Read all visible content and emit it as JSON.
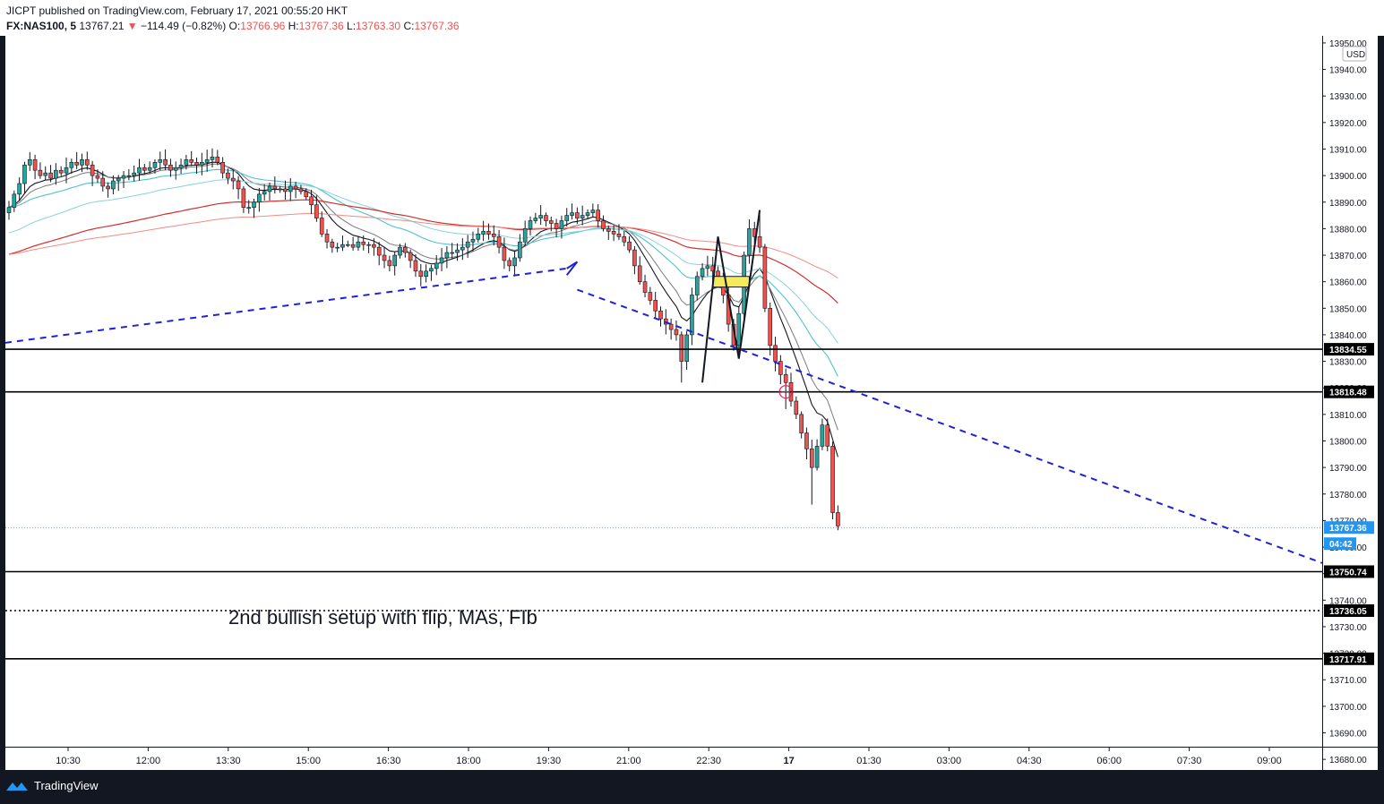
{
  "header": {
    "publish_line": "JICPT published on TradingView.com, February 17, 2021 00:55:20 HKT",
    "symbol": "FX:NAS100, 5",
    "last": "13767.21",
    "change": "−114.49 (−0.82%)",
    "o_label": "O:",
    "o_value": "13766.96",
    "h_label": "H:",
    "h_value": "13767.36",
    "l_label": "L:",
    "l_value": "13763.30",
    "c_label": "C:",
    "c_value": "13767.36"
  },
  "footer": {
    "brand": "TradingView"
  },
  "colors": {
    "up": "#26a69a",
    "down": "#ef5350",
    "trend": "#1e22d6",
    "price_tag": "#2196f3",
    "cyan_ma": "#4dc2cc",
    "red_ma": "#d32f2f",
    "pink_ma": "#f28b82",
    "highlight": "#f5ea5a"
  },
  "chart_data": {
    "type": "candlestick",
    "currency": "USD",
    "x_ticks": [
      "10:30",
      "12:00",
      "13:30",
      "15:00",
      "16:30",
      "18:00",
      "19:30",
      "21:00",
      "22:30",
      "17",
      "01:30",
      "03:00",
      "04:30",
      "06:00",
      "07:30",
      "09:00"
    ],
    "y_ticks": [
      "13950.00",
      "13940.00",
      "13930.00",
      "13920.00",
      "13910.00",
      "13900.00",
      "13890.00",
      "13880.00",
      "13870.00",
      "13860.00",
      "13850.00",
      "13840.00",
      "13830.00",
      "13820.00",
      "13810.00",
      "13800.00",
      "13790.00",
      "13780.00",
      "13770.00",
      "13760.00",
      "13750.00",
      "13740.00",
      "13730.00",
      "13720.00",
      "13710.00",
      "13700.00",
      "13690.00",
      "13680.00"
    ],
    "ylim": [
      13676,
      13952
    ],
    "horizontal_levels": [
      {
        "value": 13834.55,
        "label": "13834.55",
        "style": "solid"
      },
      {
        "value": 13818.48,
        "label": "13818.48",
        "style": "solid"
      },
      {
        "value": 13750.74,
        "label": "13750.74",
        "style": "solid"
      },
      {
        "value": 13736.05,
        "label": "13736.05",
        "style": "dotted"
      },
      {
        "value": 13717.91,
        "label": "13717.91",
        "style": "solid"
      }
    ],
    "last_price": {
      "value": 13767.36,
      "label": "13767.36",
      "countdown": "04:42"
    },
    "annotation": "2nd bullish setup with flip, MAs, FIb",
    "closes": [
      13888,
      13893,
      13897,
      13904,
      13906,
      13902,
      13900,
      13901,
      13899,
      13902,
      13901,
      13903,
      13905,
      13904,
      13906,
      13904,
      13900,
      13899,
      13896,
      13895,
      13898,
      13899,
      13900,
      13900,
      13901,
      13903,
      13902,
      13903,
      13905,
      13906,
      13904,
      13902,
      13903,
      13904,
      13906,
      13905,
      13904,
      13905,
      13906,
      13907,
      13905,
      13901,
      13899,
      13898,
      13895,
      13888,
      13888,
      13890,
      13893,
      13894,
      13896,
      13895,
      13895,
      13894,
      13896,
      13895,
      13894,
      13892,
      13889,
      13884,
      13878,
      13875,
      13873,
      13873,
      13874,
      13874,
      13873,
      13875,
      13874,
      13874,
      13873,
      13870,
      13868,
      13866,
      13870,
      13873,
      13871,
      13868,
      13864,
      13862,
      13864,
      13865,
      13867,
      13869,
      13871,
      13871,
      13872,
      13873,
      13875,
      13876,
      13878,
      13879,
      13878,
      13877,
      13873,
      13868,
      13866,
      13869,
      13875,
      13880,
      13883,
      13884,
      13885,
      13883,
      13882,
      13880,
      13883,
      13885,
      13886,
      13884,
      13885,
      13886,
      13887,
      13883,
      13880,
      13879,
      13878,
      13877,
      13875,
      13872,
      13866,
      13860,
      13856,
      13853,
      13849,
      13846,
      13844,
      13842,
      13840,
      13830,
      13840,
      13855,
      13862,
      13865,
      13866,
      13864,
      13862,
      13855,
      13844,
      13836,
      13848,
      13870,
      13880,
      13877,
      13873,
      13850,
      13836,
      13830,
      13825,
      13822,
      13815,
      13810,
      13803,
      13797,
      13790,
      13798,
      13806,
      13798,
      13773,
      13768
    ]
  }
}
